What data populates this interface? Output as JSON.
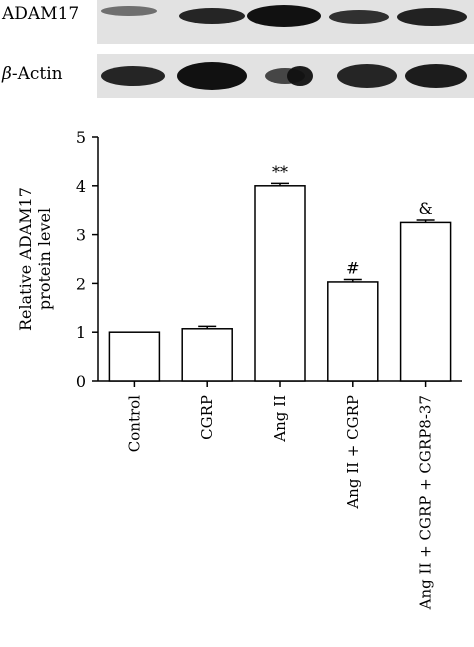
{
  "blot": {
    "rows": [
      {
        "label": "ADAM17"
      },
      {
        "label_symbol": "β",
        "label_rest": "-Actin"
      }
    ]
  },
  "chart_data": {
    "type": "bar",
    "categories": [
      "Control",
      "CGRP",
      "Ang II",
      "Ang II + CGRP",
      "Ang II + CGRP + CGRP8-37"
    ],
    "values": [
      1.0,
      1.07,
      4.0,
      2.03,
      3.25
    ],
    "errors": [
      0.0,
      0.05,
      0.05,
      0.05,
      0.05
    ],
    "annotations": [
      "",
      "",
      "**",
      "#",
      "&"
    ],
    "ylabel_lines": [
      "Relative ADAM17",
      "protein level"
    ],
    "ylim": [
      0,
      5
    ],
    "yticks": [
      0,
      1,
      2,
      3,
      4,
      5
    ],
    "grid": false,
    "bar_color": "#ffffff",
    "edge_color": "#000000"
  }
}
